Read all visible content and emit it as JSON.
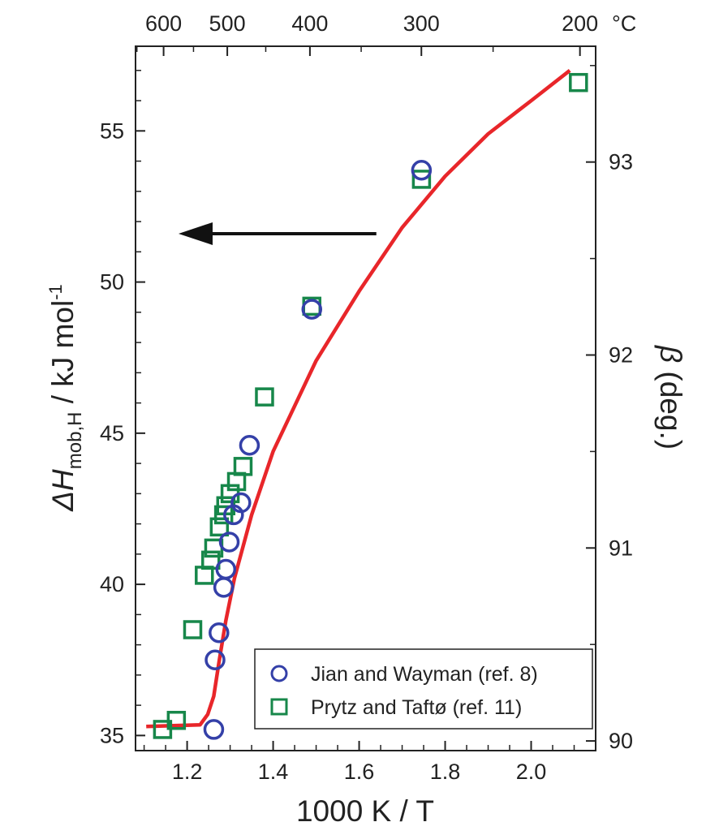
{
  "chart_data": {
    "type": "scatter",
    "xlabel": "1000 K / T",
    "ylabel_left": "ΔH",
    "ylabel_left_sub": "mob,H",
    "ylabel_left_unit": " / kJ mol",
    "ylabel_left_sup": "-1",
    "ylabel_right": "β",
    "ylabel_right_unit": " (deg.)",
    "xlim": [
      1.08,
      2.15
    ],
    "ylim_left": [
      34.5,
      57.8
    ],
    "ylim_right": [
      89.95,
      93.6
    ],
    "x_ticks": [
      1.2,
      1.4,
      1.6,
      1.8,
      2.0
    ],
    "y_left_ticks": [
      35,
      40,
      45,
      50,
      55
    ],
    "y_right_ticks": [
      90,
      91,
      92,
      93
    ],
    "top_axis": {
      "unit": "°C",
      "ticks": [
        600,
        500,
        400,
        300,
        200
      ]
    },
    "arrow": {
      "from_x": 1.64,
      "to_x": 1.18,
      "y_left": 51.6
    },
    "grid": false,
    "legend_position": "bottom-right",
    "series": [
      {
        "name": "Jian and Wayman (ref. 8)",
        "marker": "circle",
        "color": "#3440a8",
        "axis": "left",
        "points": [
          [
            1.262,
            35.2
          ],
          [
            1.265,
            37.5
          ],
          [
            1.274,
            38.4
          ],
          [
            1.285,
            39.9
          ],
          [
            1.29,
            40.5
          ],
          [
            1.298,
            41.4
          ],
          [
            1.308,
            42.3
          ],
          [
            1.325,
            42.7
          ],
          [
            1.345,
            44.6
          ],
          [
            1.49,
            49.1
          ],
          [
            1.745,
            53.7
          ]
        ]
      },
      {
        "name": "Prytz and Taftø (ref. 11)",
        "marker": "square",
        "color": "#17874a",
        "axis": "left",
        "points": [
          [
            1.143,
            35.2
          ],
          [
            1.175,
            35.5
          ],
          [
            1.213,
            38.5
          ],
          [
            1.24,
            40.3
          ],
          [
            1.255,
            40.8
          ],
          [
            1.262,
            41.2
          ],
          [
            1.275,
            41.9
          ],
          [
            1.285,
            42.3
          ],
          [
            1.29,
            42.6
          ],
          [
            1.3,
            43.0
          ],
          [
            1.315,
            43.4
          ],
          [
            1.33,
            43.9
          ],
          [
            1.38,
            46.2
          ],
          [
            1.49,
            49.2
          ],
          [
            1.745,
            53.4
          ],
          [
            2.11,
            56.6
          ]
        ]
      },
      {
        "name": "β",
        "marker": "line",
        "color": "#e8262a",
        "axis": "left",
        "points": [
          [
            1.105,
            35.3
          ],
          [
            1.23,
            35.35
          ],
          [
            1.248,
            35.7
          ],
          [
            1.262,
            36.3
          ],
          [
            1.275,
            37.5
          ],
          [
            1.29,
            38.8
          ],
          [
            1.31,
            40.2
          ],
          [
            1.35,
            42.3
          ],
          [
            1.4,
            44.4
          ],
          [
            1.5,
            47.4
          ],
          [
            1.6,
            49.7
          ],
          [
            1.7,
            51.8
          ],
          [
            1.8,
            53.5
          ],
          [
            1.9,
            54.9
          ],
          [
            2.0,
            56.0
          ],
          [
            2.09,
            57.0
          ]
        ]
      }
    ]
  }
}
